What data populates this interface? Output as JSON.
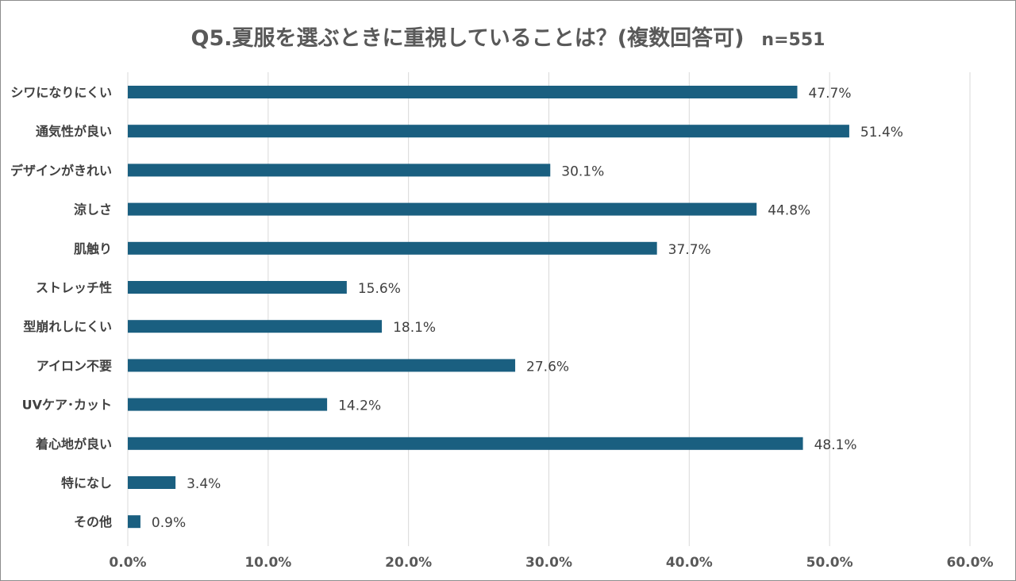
{
  "chart_data": {
    "type": "bar",
    "orientation": "horizontal",
    "title": "Q5.夏服を選ぶときに重視していることは？(複数回答可)",
    "sample_size": "n=551",
    "categories": [
      "シワになりにくい",
      "通気性が良い",
      "デザインがきれい",
      "涼しさ",
      "肌触り",
      "ストレッチ性",
      "型崩れしにくい",
      "アイロン不要",
      "UVケア･カット",
      "着心地が良い",
      "特になし",
      "その他"
    ],
    "values": [
      47.7,
      51.4,
      30.1,
      44.8,
      37.7,
      15.6,
      18.1,
      27.6,
      14.2,
      48.1,
      3.4,
      0.9
    ],
    "value_labels": [
      "47.7%",
      "51.4%",
      "30.1%",
      "44.8%",
      "37.7%",
      "15.6%",
      "18.1%",
      "27.6%",
      "14.2%",
      "48.1%",
      "3.4%",
      "0.9%"
    ],
    "xlim": [
      0,
      60
    ],
    "xticks": [
      "0.0%",
      "10.0%",
      "20.0%",
      "30.0%",
      "40.0%",
      "50.0%",
      "60.0%"
    ],
    "grid": "vertical",
    "bar_color": "#1a5f80",
    "grid_color": "#d9d9d9"
  }
}
